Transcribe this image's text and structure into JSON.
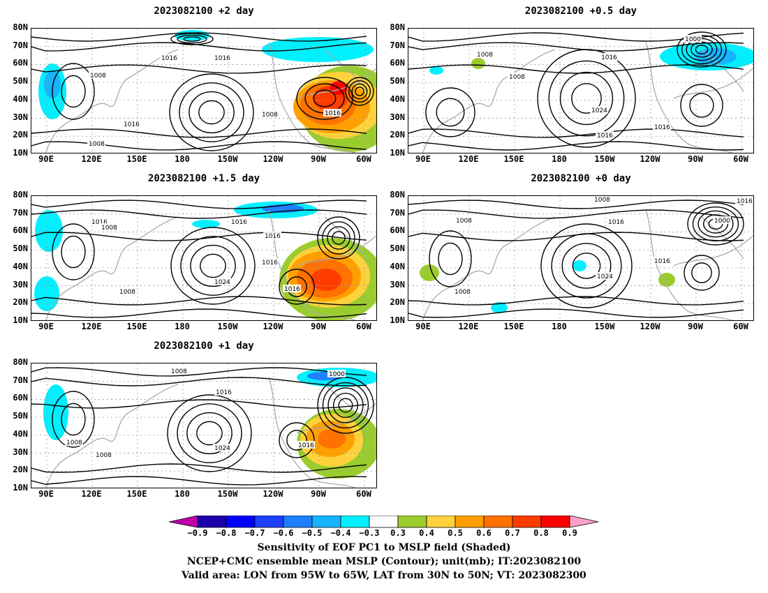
{
  "panels": [
    {
      "title": "2023082100 +2 day",
      "contour_labels": [
        "1016",
        "1016",
        "1008",
        "1016",
        "1008",
        "1008",
        "1016"
      ]
    },
    {
      "title": "2023082100 +0.5 day",
      "contour_labels": [
        "1000",
        "1016",
        "1008",
        "1008",
        "1024",
        "1016",
        "1016"
      ]
    },
    {
      "title": "2023082100 +1.5 day",
      "contour_labels": [
        "1016",
        "1008",
        "1016",
        "1016",
        "1016",
        "1024",
        "1008",
        "1016"
      ]
    },
    {
      "title": "2023082100 +0 day",
      "contour_labels": [
        "1008",
        "1016",
        "1008",
        "1000",
        "1016",
        "1024",
        "1016",
        "1008"
      ]
    },
    {
      "title": "2023082100 +1 day",
      "contour_labels": [
        "1008",
        "1000",
        "1016",
        "1008",
        "1008",
        "1024",
        "1016"
      ]
    }
  ],
  "lat_ticks": [
    "80N",
    "70N",
    "60N",
    "50N",
    "40N",
    "30N",
    "20N",
    "10N"
  ],
  "lon_ticks": [
    "90E",
    "120E",
    "150E",
    "180",
    "150W",
    "120W",
    "90W",
    "60W"
  ],
  "colorbar": {
    "ticks": [
      "−0.9",
      "−0.8",
      "−0.7",
      "−0.6",
      "−0.5",
      "−0.4",
      "−0.3",
      "0.3",
      "0.4",
      "0.5",
      "0.6",
      "0.7",
      "0.8",
      "0.9"
    ],
    "colors": [
      "#c000a8",
      "#1a00a8",
      "#0000ff",
      "#1e40ff",
      "#1e80ff",
      "#16b4ff",
      "#00f0ff",
      "#ffffff",
      "#9bcc2e",
      "#ffd23c",
      "#ffa000",
      "#ff7200",
      "#ff3c00",
      "#ff0000",
      "#ffa0c8"
    ]
  },
  "captions": [
    "Sensitivity of EOF PC1 to MSLP field (Shaded)",
    "NCEP+CMC ensemble mean MSLP (Contour); unit(mb); IT:2023082100",
    "Valid area: LON from 95W to 65W, LAT from 30N to 50N; VT: 2023082300"
  ]
}
